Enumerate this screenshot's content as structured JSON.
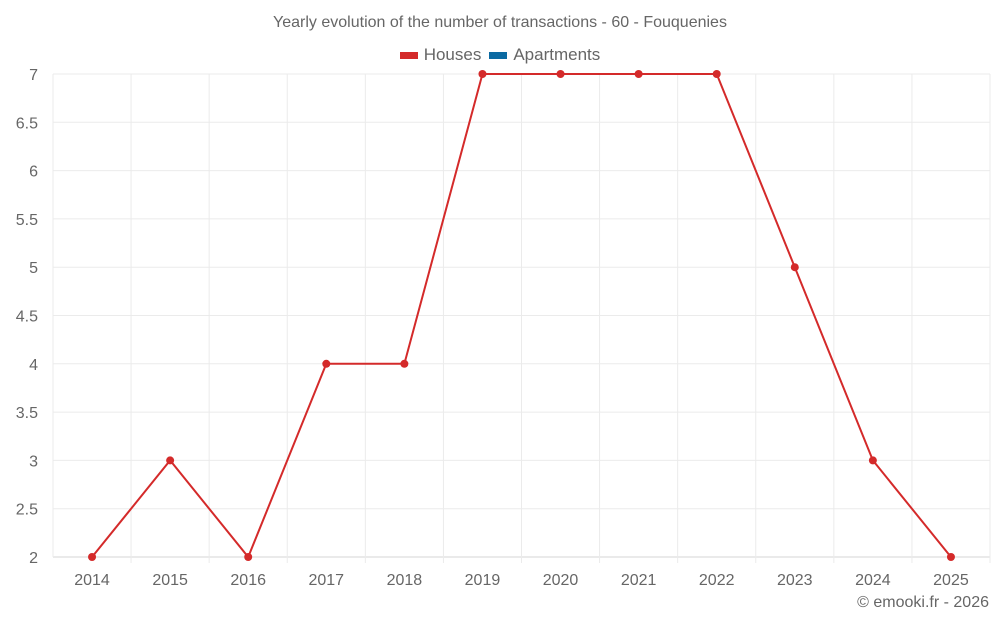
{
  "title": "Yearly evolution of the number of transactions - 60 - Fouquenies",
  "legend": [
    {
      "label": "Houses",
      "color": "#d42a2a"
    },
    {
      "label": "Apartments",
      "color": "#0b6aa2"
    }
  ],
  "credit": "© emooki.fr - 2026",
  "colors": {
    "houses": "#d42a2a",
    "apartments": "#0b6aa2",
    "grid": "#ebebeb",
    "axis_text": "#666666"
  },
  "chart_data": {
    "type": "line",
    "title": "Yearly evolution of the number of transactions - 60 - Fouquenies",
    "xlabel": "",
    "ylabel": "",
    "categories": [
      "2014",
      "2015",
      "2016",
      "2017",
      "2018",
      "2019",
      "2020",
      "2021",
      "2022",
      "2023",
      "2024",
      "2025"
    ],
    "series": [
      {
        "name": "Houses",
        "color": "#d42a2a",
        "values": [
          2,
          3,
          2,
          4,
          4,
          7,
          7,
          7,
          7,
          5,
          3,
          2
        ]
      },
      {
        "name": "Apartments",
        "color": "#0b6aa2",
        "values": []
      }
    ],
    "ylim": [
      2,
      7
    ],
    "yticks": [
      "2",
      "2.5",
      "3",
      "3.5",
      "4",
      "4.5",
      "5",
      "5.5",
      "6",
      "6.5",
      "7"
    ],
    "grid": true,
    "legend_position": "top"
  }
}
